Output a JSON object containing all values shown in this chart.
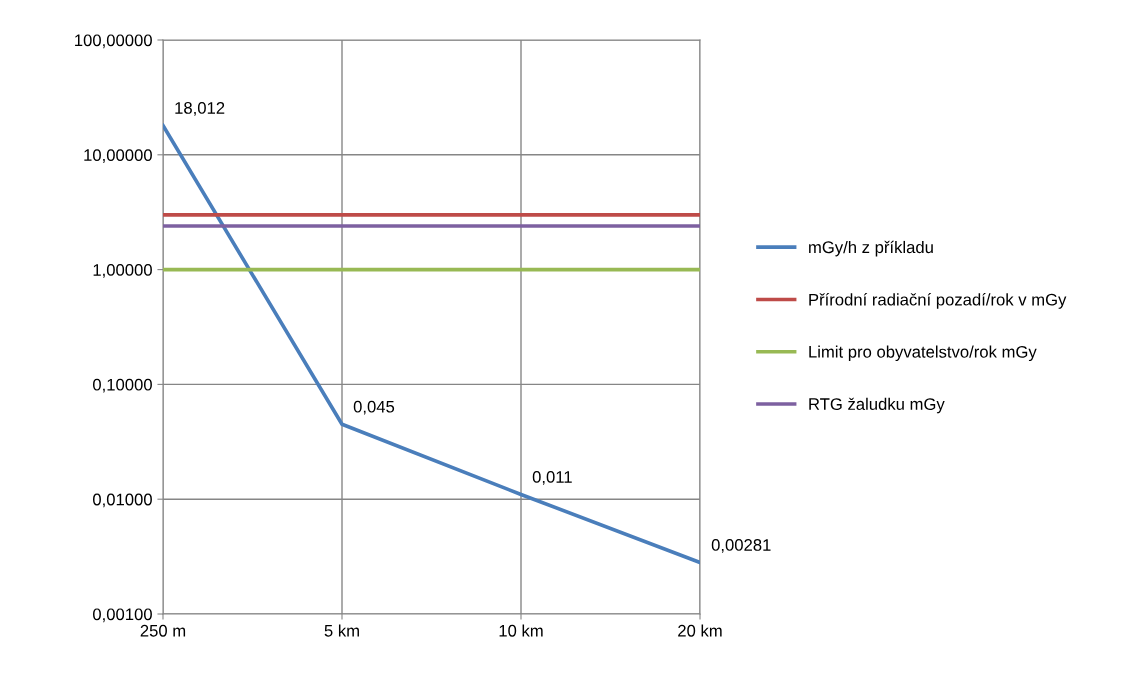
{
  "chart_data": {
    "type": "line",
    "categories": [
      "250 m",
      "5 km",
      "10 km",
      "20 km"
    ],
    "series": [
      {
        "name": "mGy/h z příkladu",
        "color": "#4a7ebb",
        "values": [
          18.012,
          0.045,
          0.011,
          0.00281
        ],
        "value_labels": [
          "18,012",
          "0,045",
          "0,011",
          "0,00281"
        ]
      },
      {
        "name": "Přírodní radiační pozadí/rok v mGy",
        "color": "#be4b48",
        "values": [
          3.0,
          3.0,
          3.0,
          3.0
        ]
      },
      {
        "name": "Limit pro obyvatelstvo/rok mGy",
        "color": "#98b954",
        "values": [
          1.0,
          1.0,
          1.0,
          1.0
        ]
      },
      {
        "name": "RTG žaludku mGy",
        "color": "#7d60a0",
        "values": [
          2.4,
          2.4,
          2.4,
          2.4
        ]
      }
    ],
    "log": true,
    "ylim": [
      0.001,
      100
    ],
    "yticks": [
      {
        "value": 0.001,
        "label": "0,00100"
      },
      {
        "value": 0.01,
        "label": "0,01000"
      },
      {
        "value": 0.1,
        "label": "0,10000"
      },
      {
        "value": 1,
        "label": "1,00000"
      },
      {
        "value": 10,
        "label": "10,00000"
      },
      {
        "value": 100,
        "label": "100,00000"
      }
    ],
    "grid": true,
    "legend": "right",
    "marker": "none",
    "line_style": "solid"
  }
}
